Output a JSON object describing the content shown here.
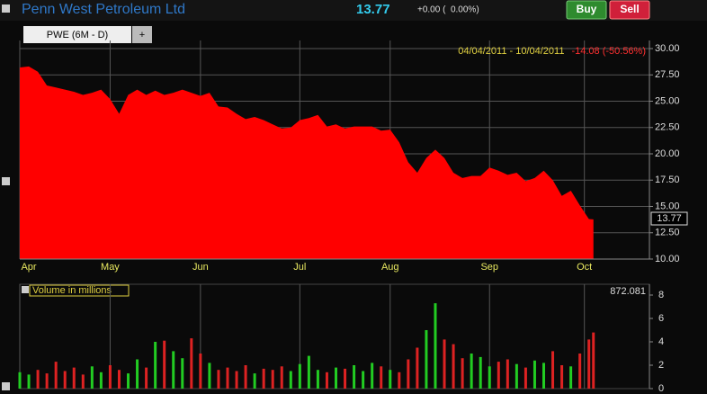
{
  "header": {
    "title": "Penn West Petroleum Ltd",
    "price": "13.77",
    "change": "+0.00 (  0.00%)",
    "buy": "Buy",
    "sell": "Sell"
  },
  "tabs": [
    "PWE (6M - D)",
    "+"
  ],
  "chart_data": [
    {
      "type": "area",
      "date_range": "04/04/2011 - 10/04/2011",
      "range_change": "-14.08 (-50.56%)",
      "color": "#ff0000",
      "grid": true,
      "x": [
        0,
        2,
        4,
        6,
        8,
        10,
        12,
        14,
        16,
        18,
        20,
        22,
        24,
        26,
        28,
        30,
        32,
        34,
        36,
        38,
        40,
        42,
        44,
        46,
        48,
        50,
        52,
        54,
        56,
        58,
        60,
        62,
        64,
        66,
        68,
        70,
        72,
        74,
        76,
        78,
        80,
        82,
        84,
        86,
        88,
        90,
        92,
        94,
        96,
        98,
        100,
        102,
        104,
        106,
        108,
        110,
        112,
        114,
        116,
        118,
        120,
        122,
        124,
        126,
        127
      ],
      "values": [
        28.2,
        28.3,
        27.8,
        26.5,
        26.3,
        26.1,
        25.9,
        25.6,
        25.8,
        26.1,
        25.2,
        23.8,
        25.6,
        26.1,
        25.6,
        26.0,
        25.6,
        25.8,
        26.1,
        25.8,
        25.5,
        25.8,
        24.5,
        24.4,
        23.8,
        23.3,
        23.5,
        23.2,
        22.8,
        22.4,
        22.5,
        23.2,
        23.4,
        23.7,
        22.6,
        22.8,
        22.4,
        22.6,
        22.6,
        22.6,
        22.2,
        22.3,
        21.1,
        19.2,
        18.2,
        19.6,
        20.4,
        19.6,
        18.2,
        17.7,
        17.9,
        17.9,
        18.7,
        18.4,
        18.0,
        18.2,
        17.4,
        17.7,
        18.4,
        17.5,
        16.0,
        16.5,
        15.1,
        13.8,
        13.77
      ],
      "xlim": [
        0,
        139.4
      ],
      "xticks": [
        {
          "value": 0,
          "label": "Apr"
        },
        {
          "value": 20,
          "label": "May"
        },
        {
          "value": 40,
          "label": "Jun"
        },
        {
          "value": 62,
          "label": "Jul"
        },
        {
          "value": 82,
          "label": "Aug"
        },
        {
          "value": 104,
          "label": "Sep"
        },
        {
          "value": 125,
          "label": "Oct"
        }
      ],
      "ylim": [
        10,
        30
      ],
      "yticks": [
        {
          "value": 10,
          "label": "10.00"
        },
        {
          "value": 12.5,
          "label": "12.50"
        },
        {
          "value": 15,
          "label": "15.00"
        },
        {
          "value": 17.5,
          "label": "17.50"
        },
        {
          "value": 20,
          "label": "20.00"
        },
        {
          "value": 22.5,
          "label": "22.50"
        },
        {
          "value": 25,
          "label": "25.00"
        },
        {
          "value": 27.5,
          "label": "27.50"
        },
        {
          "value": 30,
          "label": "30.00"
        }
      ]
    },
    {
      "type": "bar",
      "title": "Volume in millions",
      "last_label": "872.081",
      "up_color": "#22cc22",
      "down_color": "#dd2222",
      "values": [
        1.4,
        1.2,
        1.6,
        1.3,
        2.3,
        1.5,
        1.8,
        1.2,
        1.9,
        1.4,
        2.0,
        1.6,
        1.3,
        2.5,
        1.8,
        4.0,
        4.1,
        3.2,
        2.6,
        4.3,
        3.0,
        2.2,
        1.6,
        1.8,
        1.5,
        2.0,
        1.3,
        1.7,
        1.6,
        1.9,
        1.5,
        2.1,
        2.8,
        1.6,
        1.4,
        1.8,
        1.7,
        2.0,
        1.5,
        2.2,
        1.9,
        1.6,
        1.4,
        2.5,
        3.5,
        5.0,
        7.3,
        4.2,
        3.8,
        2.6,
        3.0,
        2.7,
        1.9,
        2.3,
        2.5,
        2.1,
        1.8,
        2.4,
        2.2,
        3.2,
        2.0,
        1.9,
        3.0,
        4.2,
        4.8
      ],
      "ylim": [
        0,
        8
      ],
      "yticks": [
        0,
        2,
        4,
        6,
        8
      ]
    }
  ]
}
